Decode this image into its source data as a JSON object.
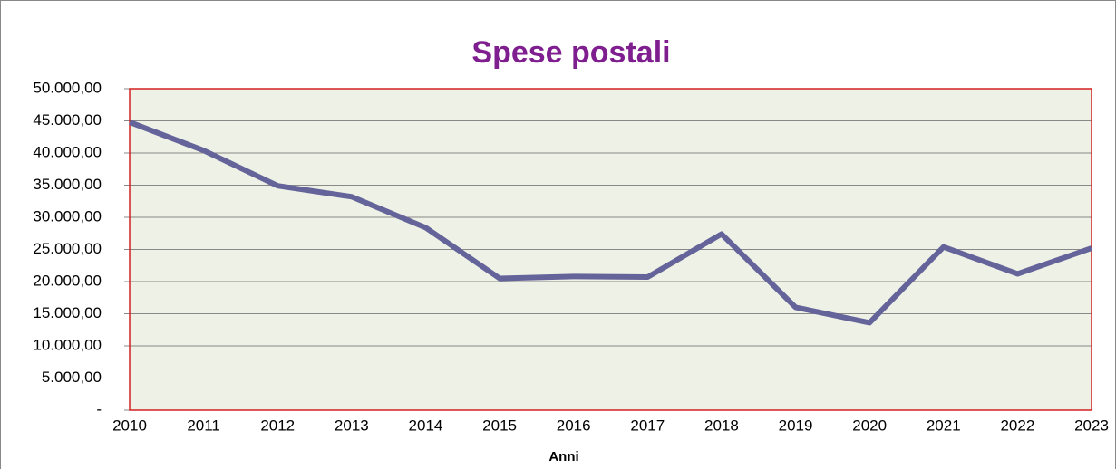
{
  "chart_data": {
    "type": "line",
    "title": "Spese postali",
    "x_label": "Anni",
    "categories": [
      "2010",
      "2011",
      "2012",
      "2013",
      "2014",
      "2015",
      "2016",
      "2017",
      "2018",
      "2019",
      "2020",
      "2021",
      "2022",
      "2023"
    ],
    "series": [
      {
        "name": "Spese postali",
        "color": "#64649a",
        "values": [
          44800,
          40400,
          34900,
          33200,
          28400,
          20500,
          20800,
          20700,
          27400,
          16000,
          13600,
          25400,
          21200,
          25200
        ]
      }
    ],
    "ylim": [
      0,
      50000
    ],
    "yticks": [
      {
        "value": 0,
        "label": "-"
      },
      {
        "value": 5000,
        "label": "5.000,00"
      },
      {
        "value": 10000,
        "label": "10.000,00"
      },
      {
        "value": 15000,
        "label": "15.000,00"
      },
      {
        "value": 20000,
        "label": "20.000,00"
      },
      {
        "value": 25000,
        "label": "25.000,00"
      },
      {
        "value": 30000,
        "label": "30.000,00"
      },
      {
        "value": 35000,
        "label": "35.000,00"
      },
      {
        "value": 40000,
        "label": "40.000,00"
      },
      {
        "value": 45000,
        "label": "45.000,00"
      },
      {
        "value": 50000,
        "label": "50.000,00"
      }
    ],
    "grid": true
  }
}
